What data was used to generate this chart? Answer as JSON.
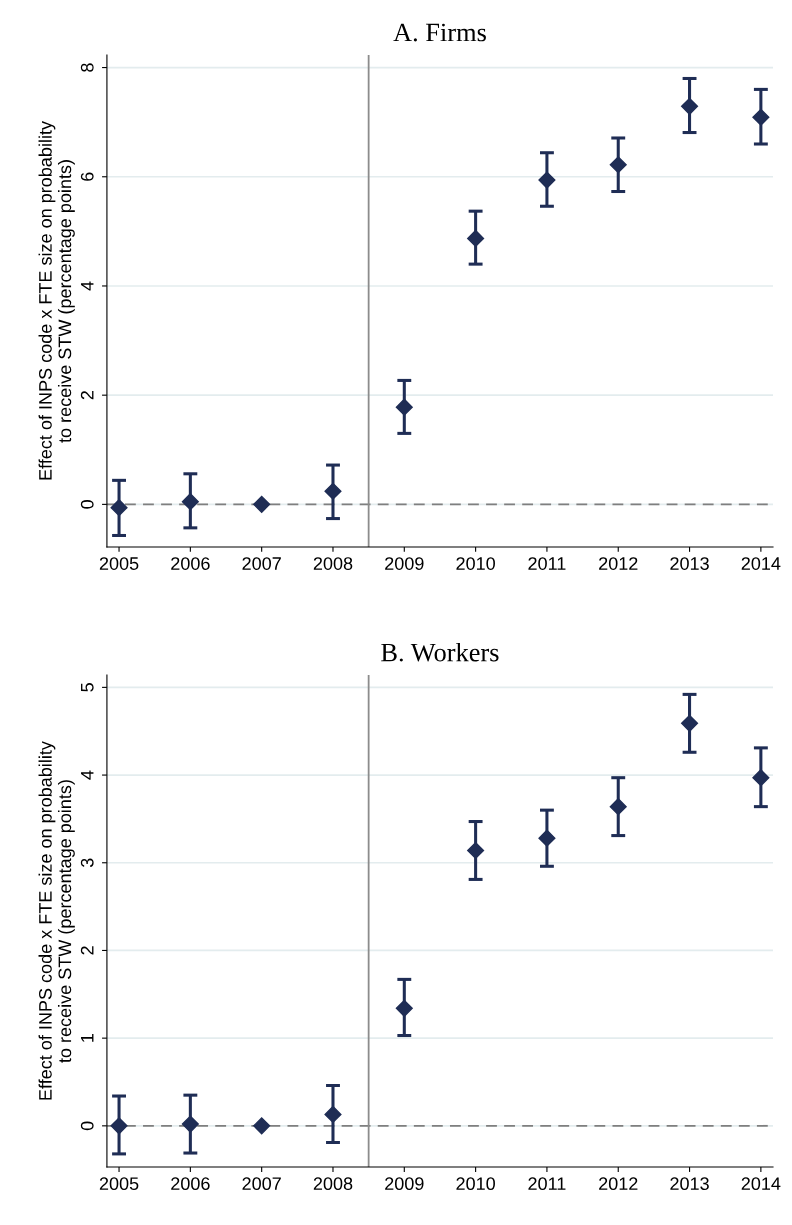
{
  "chart_data": [
    {
      "type": "scatter",
      "title": "A. Firms",
      "ylabel": "Effect of INPS code x FTE size on probability\nto receive STW (percentage points)",
      "x": [
        2005,
        2006,
        2007,
        2008,
        2009,
        2010,
        2011,
        2012,
        2013,
        2014
      ],
      "series": [
        {
          "color": "#1f2d55",
          "values": [
            -0.06,
            0.05,
            0,
            0.24,
            1.78,
            4.87,
            5.94,
            6.22,
            7.29,
            7.09
          ],
          "errors": [
            [
              -0.57,
              0.44
            ],
            [
              -0.43,
              0.56
            ],
            null,
            [
              -0.26,
              0.72
            ],
            [
              1.3,
              2.27
            ],
            [
              4.4,
              5.37
            ],
            [
              5.46,
              6.44
            ],
            [
              5.73,
              6.71
            ],
            [
              6.81,
              7.8
            ],
            [
              6.6,
              7.6
            ]
          ]
        }
      ],
      "marker": "diamond",
      "xlim": [
        2004.83,
        2014.17
      ],
      "xticks": [
        2005,
        2006,
        2007,
        2008,
        2009,
        2010,
        2011,
        2012,
        2013,
        2014
      ],
      "ylim": [
        -0.78,
        8.23
      ],
      "yticks": [
        0,
        2,
        4,
        6,
        8
      ],
      "grid": "y",
      "legend": false,
      "ref_lines": [
        {
          "axis": "y",
          "value": 0,
          "color": "#7f7f7f",
          "line_style": "dashed"
        },
        {
          "axis": "x",
          "value": 2008.5,
          "color": "#8c8c8c",
          "line_style": "solid"
        }
      ]
    },
    {
      "type": "scatter",
      "title": "B. Workers",
      "ylabel": "Effect of INPS code x FTE size on probability\nto receive STW (percentage points)",
      "x": [
        2005,
        2006,
        2007,
        2008,
        2009,
        2010,
        2011,
        2012,
        2013,
        2014
      ],
      "series": [
        {
          "color": "#1f2d55",
          "values": [
            0,
            0.02,
            0,
            0.13,
            1.34,
            3.14,
            3.28,
            3.64,
            4.59,
            3.97
          ],
          "errors": [
            [
              -0.32,
              0.34
            ],
            [
              -0.31,
              0.35
            ],
            null,
            [
              -0.19,
              0.46
            ],
            [
              1.03,
              1.67
            ],
            [
              2.81,
              3.47
            ],
            [
              2.96,
              3.6
            ],
            [
              3.31,
              3.97
            ],
            [
              4.26,
              4.92
            ],
            [
              3.64,
              4.31
            ]
          ]
        }
      ],
      "marker": "diamond",
      "xlim": [
        2004.83,
        2014.17
      ],
      "xticks": [
        2005,
        2006,
        2007,
        2008,
        2009,
        2010,
        2011,
        2012,
        2013,
        2014
      ],
      "ylim": [
        -0.47,
        5.14
      ],
      "yticks": [
        0,
        1,
        2,
        3,
        4,
        5
      ],
      "grid": "y",
      "legend": false,
      "ref_lines": [
        {
          "axis": "y",
          "value": 0,
          "color": "#7f7f7f",
          "line_style": "dashed"
        },
        {
          "axis": "x",
          "value": 2008.5,
          "color": "#8c8c8c",
          "line_style": "solid"
        }
      ]
    }
  ]
}
